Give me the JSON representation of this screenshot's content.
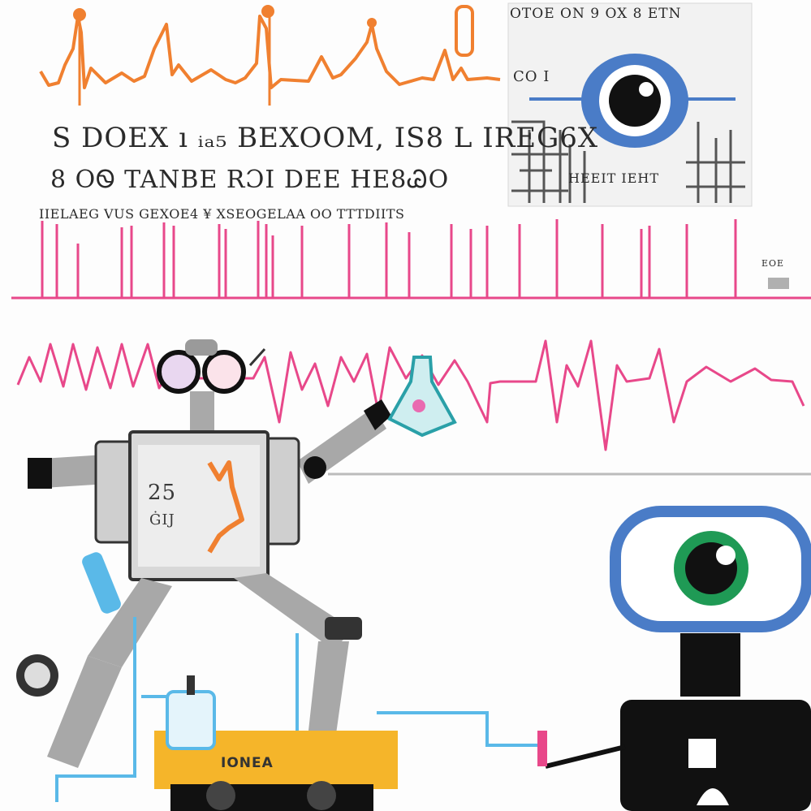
{
  "text_rows": {
    "row1": "S DOEX ı ᵢₐ₅ BEXOOM, ⅠS8 L IREG6X",
    "row2": "8 OᏫ TANBE RƆI  DEE HE8ᏊO",
    "row3": "IIELAEG VUS GEXOE4 ¥ XSEOGELAA OO TTTDIITS"
  },
  "panel": {
    "top_text": "OTOE ON 9 OX 8 ETN",
    "co_text": "CO I",
    "mid_text": "HEEIT IEHT",
    "right_text": "EOE"
  },
  "robot": {
    "number": "25",
    "sub": "ĠIJ"
  },
  "cart": {
    "label": "IONEA"
  },
  "colors": {
    "orange": "#f08030",
    "pink": "#e8488a",
    "blue": "#4a7cc7",
    "green": "#1f9a55",
    "gray": "#a0a0a0",
    "light_blue": "#5ab9e8",
    "yellow": "#f5b52a",
    "black": "#111111"
  }
}
